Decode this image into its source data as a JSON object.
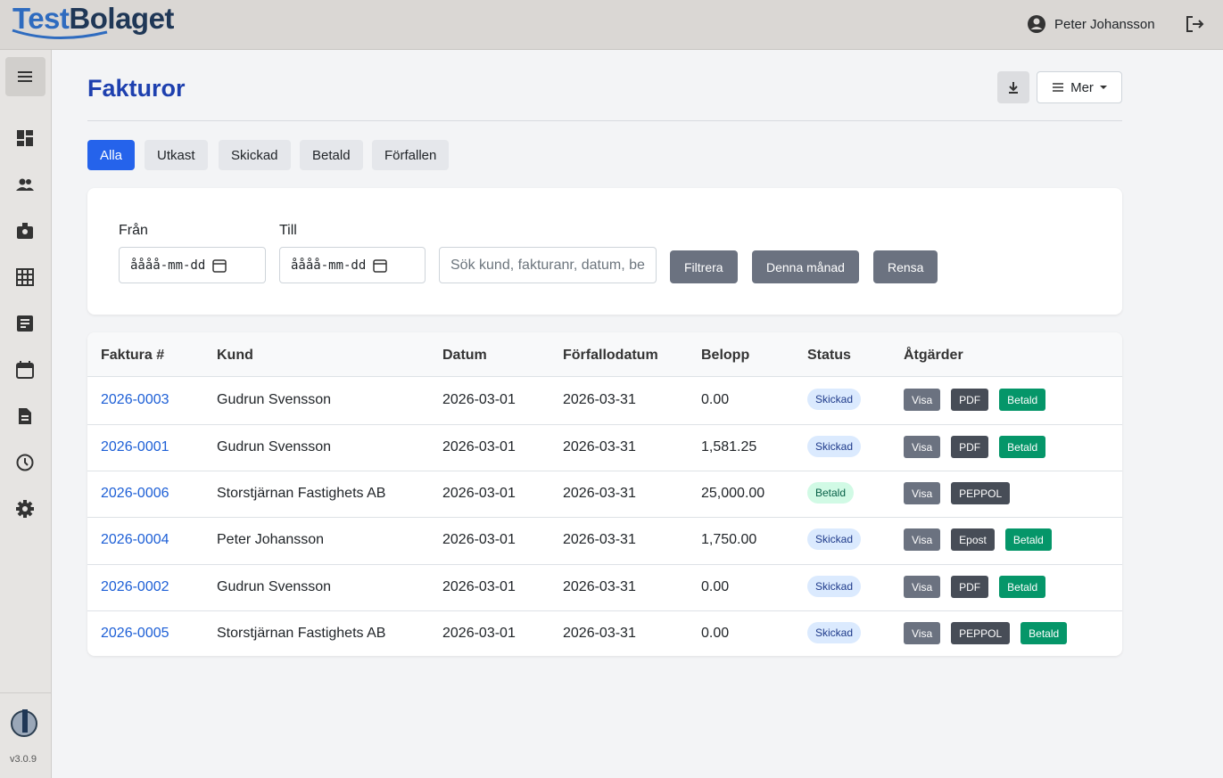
{
  "header": {
    "logo_part1": "Test",
    "logo_part2": "Bolaget",
    "user": "Peter Johansson"
  },
  "sidebar": {
    "version": "v3.0.9"
  },
  "page": {
    "title": "Fakturor",
    "more": "Mer"
  },
  "tabs": [
    "Alla",
    "Utkast",
    "Skickad",
    "Betald",
    "Förfallen"
  ],
  "active_tab": 0,
  "filter": {
    "from_label": "Från",
    "to_label": "Till",
    "date_placeholder": "åååå-mm-dd",
    "search_placeholder": "Sök kund, fakturanr, datum, be",
    "buttons": [
      "Filtrera",
      "Denna månad",
      "Rensa"
    ]
  },
  "table": {
    "columns": [
      "Faktura #",
      "Kund",
      "Datum",
      "Förfallodatum",
      "Belopp",
      "Status",
      "Åtgärder"
    ],
    "rows": [
      {
        "number": "2026-0003",
        "customer": "Gudrun Svensson",
        "date": "2026-03-01",
        "due": "2026-03-31",
        "amount": "0.00",
        "status": "Skickad",
        "status_bg": "#dbeafe",
        "status_fg": "#1e3a8a",
        "actions": [
          "Visa",
          "PDF",
          "Betald"
        ]
      },
      {
        "number": "2026-0001",
        "customer": "Gudrun Svensson",
        "date": "2026-03-01",
        "due": "2026-03-31",
        "amount": "1,581.25",
        "status": "Skickad",
        "status_bg": "#dbeafe",
        "status_fg": "#1e3a8a",
        "actions": [
          "Visa",
          "PDF",
          "Betald"
        ]
      },
      {
        "number": "2026-0006",
        "customer": "Storstjärnan Fastighets AB",
        "date": "2026-03-01",
        "due": "2026-03-31",
        "amount": "25,000.00",
        "status": "Betald",
        "status_bg": "#d1fae5",
        "status_fg": "#065f46",
        "actions": [
          "Visa",
          "PEPPOL"
        ]
      },
      {
        "number": "2026-0004",
        "customer": "Peter Johansson",
        "date": "2026-03-01",
        "due": "2026-03-31",
        "amount": "1,750.00",
        "status": "Skickad",
        "status_bg": "#dbeafe",
        "status_fg": "#1e3a8a",
        "actions": [
          "Visa",
          "Epost",
          "Betald"
        ]
      },
      {
        "number": "2026-0002",
        "customer": "Gudrun Svensson",
        "date": "2026-03-01",
        "due": "2026-03-31",
        "amount": "0.00",
        "status": "Skickad",
        "status_bg": "#dbeafe",
        "status_fg": "#1e3a8a",
        "actions": [
          "Visa",
          "PDF",
          "Betald"
        ]
      },
      {
        "number": "2026-0005",
        "customer": "Storstjärnan Fastighets AB",
        "date": "2026-03-01",
        "due": "2026-03-31",
        "amount": "0.00",
        "status": "Skickad",
        "status_bg": "#dbeafe",
        "status_fg": "#1e3a8a",
        "actions": [
          "Visa",
          "PEPPOL",
          "Betald"
        ]
      }
    ]
  }
}
